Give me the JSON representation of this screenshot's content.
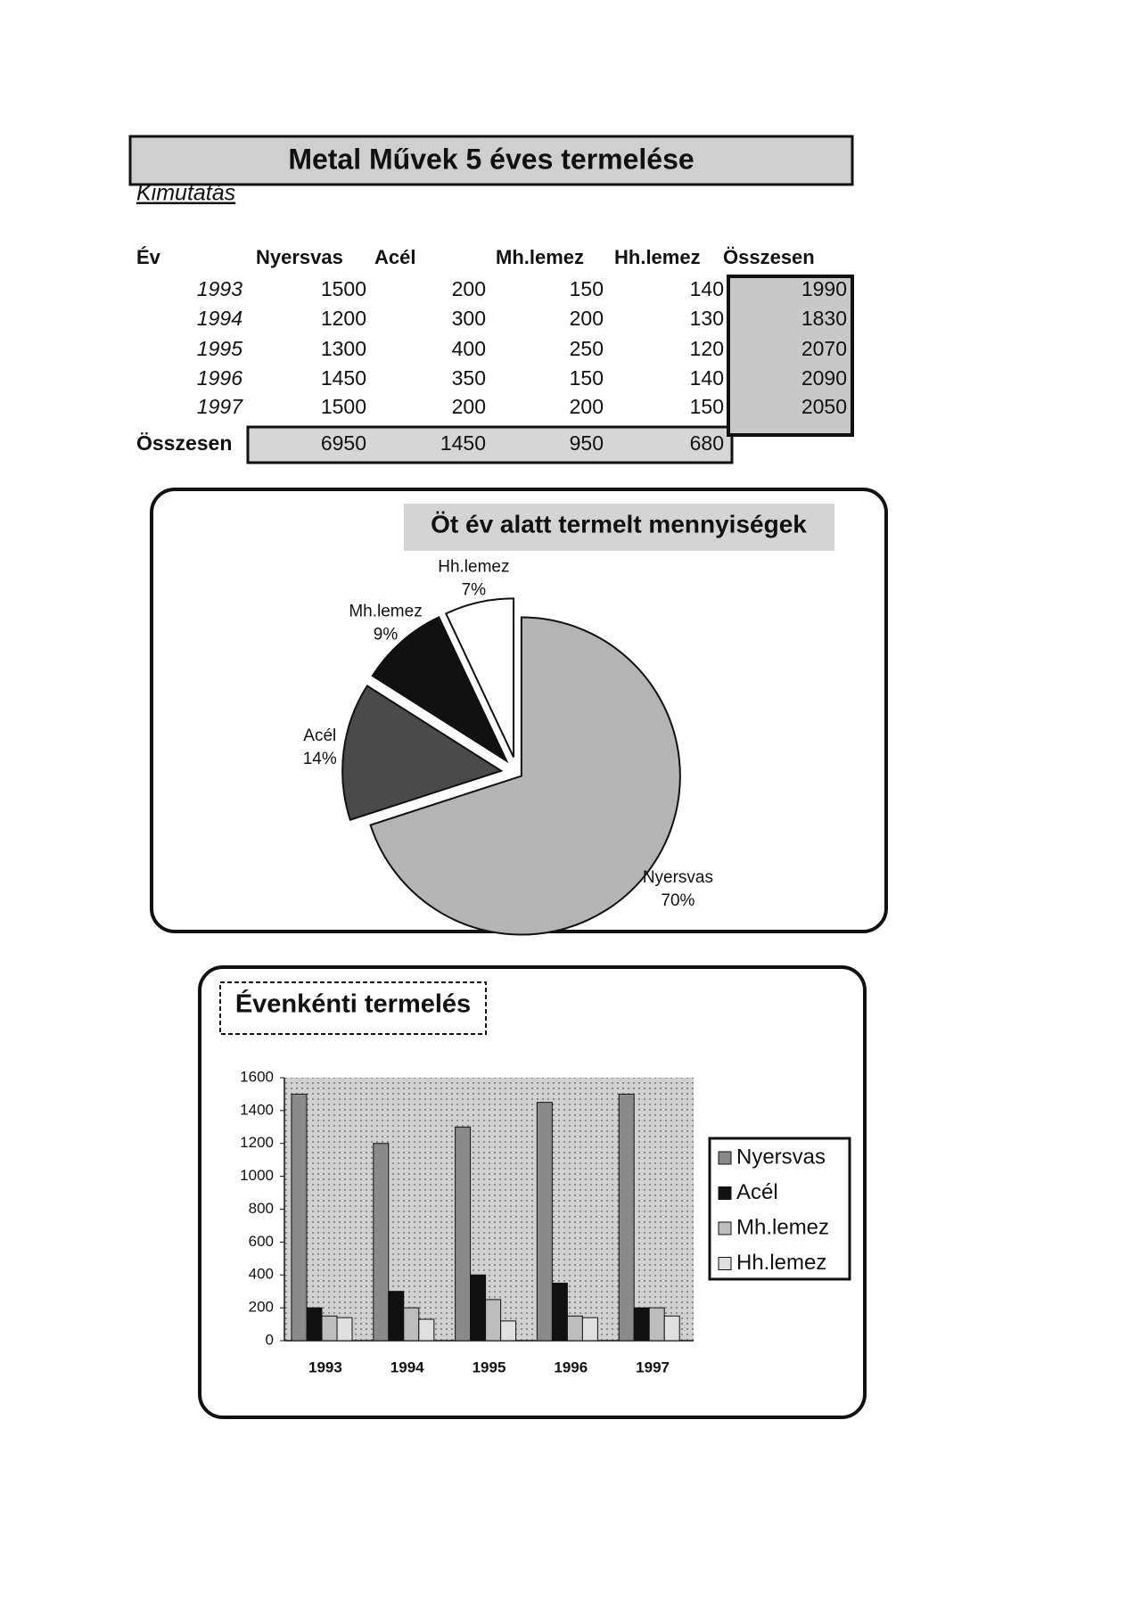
{
  "header": {
    "title": "Metal Művek 5 éves termelése",
    "subtitle": "Kimutatás"
  },
  "table": {
    "columns": [
      "Év",
      "Nyersvas",
      "Acél",
      "Mh.lemez",
      "Hh.lemez",
      "Összesen"
    ],
    "rows": [
      [
        "1993",
        1500,
        200,
        150,
        140,
        1990
      ],
      [
        "1994",
        1200,
        300,
        200,
        130,
        1830
      ],
      [
        "1995",
        1300,
        400,
        250,
        120,
        2070
      ],
      [
        "1996",
        1450,
        350,
        150,
        140,
        2090
      ],
      [
        "1997",
        1500,
        200,
        200,
        150,
        2050
      ]
    ],
    "totals": [
      "Összesen",
      6950,
      1450,
      950,
      680
    ]
  },
  "chart_data": [
    {
      "type": "pie",
      "title": "Öt év alatt termelt mennyiségek",
      "categories": [
        "Nyersvas",
        "Acél",
        "Mh.lemez",
        "Hh.lemez"
      ],
      "values": [
        70,
        14,
        9,
        7
      ],
      "value_labels": [
        "70%",
        "14%",
        "9%",
        "7%"
      ],
      "colors": [
        "#b4b4b4",
        "#4a4a4a",
        "#111111",
        "#ffffff"
      ]
    },
    {
      "type": "bar",
      "title": "Évenkénti termelés",
      "categories": [
        "1993",
        "1994",
        "1995",
        "1996",
        "1997"
      ],
      "series": [
        {
          "name": "Nyersvas",
          "color": "#8a8a8a",
          "values": [
            1500,
            1200,
            1300,
            1450,
            1500
          ]
        },
        {
          "name": "Acél",
          "color": "#111111",
          "values": [
            200,
            300,
            400,
            350,
            200
          ]
        },
        {
          "name": "Mh.lemez",
          "color": "#bdbdbd",
          "values": [
            150,
            200,
            250,
            150,
            200
          ]
        },
        {
          "name": "Hh.lemez",
          "color": "#e0e0e0",
          "values": [
            140,
            130,
            120,
            140,
            150
          ]
        }
      ],
      "ylim": [
        0,
        1600
      ],
      "yticks": [
        0,
        200,
        400,
        600,
        800,
        1000,
        1200,
        1400,
        1600
      ],
      "legend": "right",
      "grid": false
    }
  ]
}
